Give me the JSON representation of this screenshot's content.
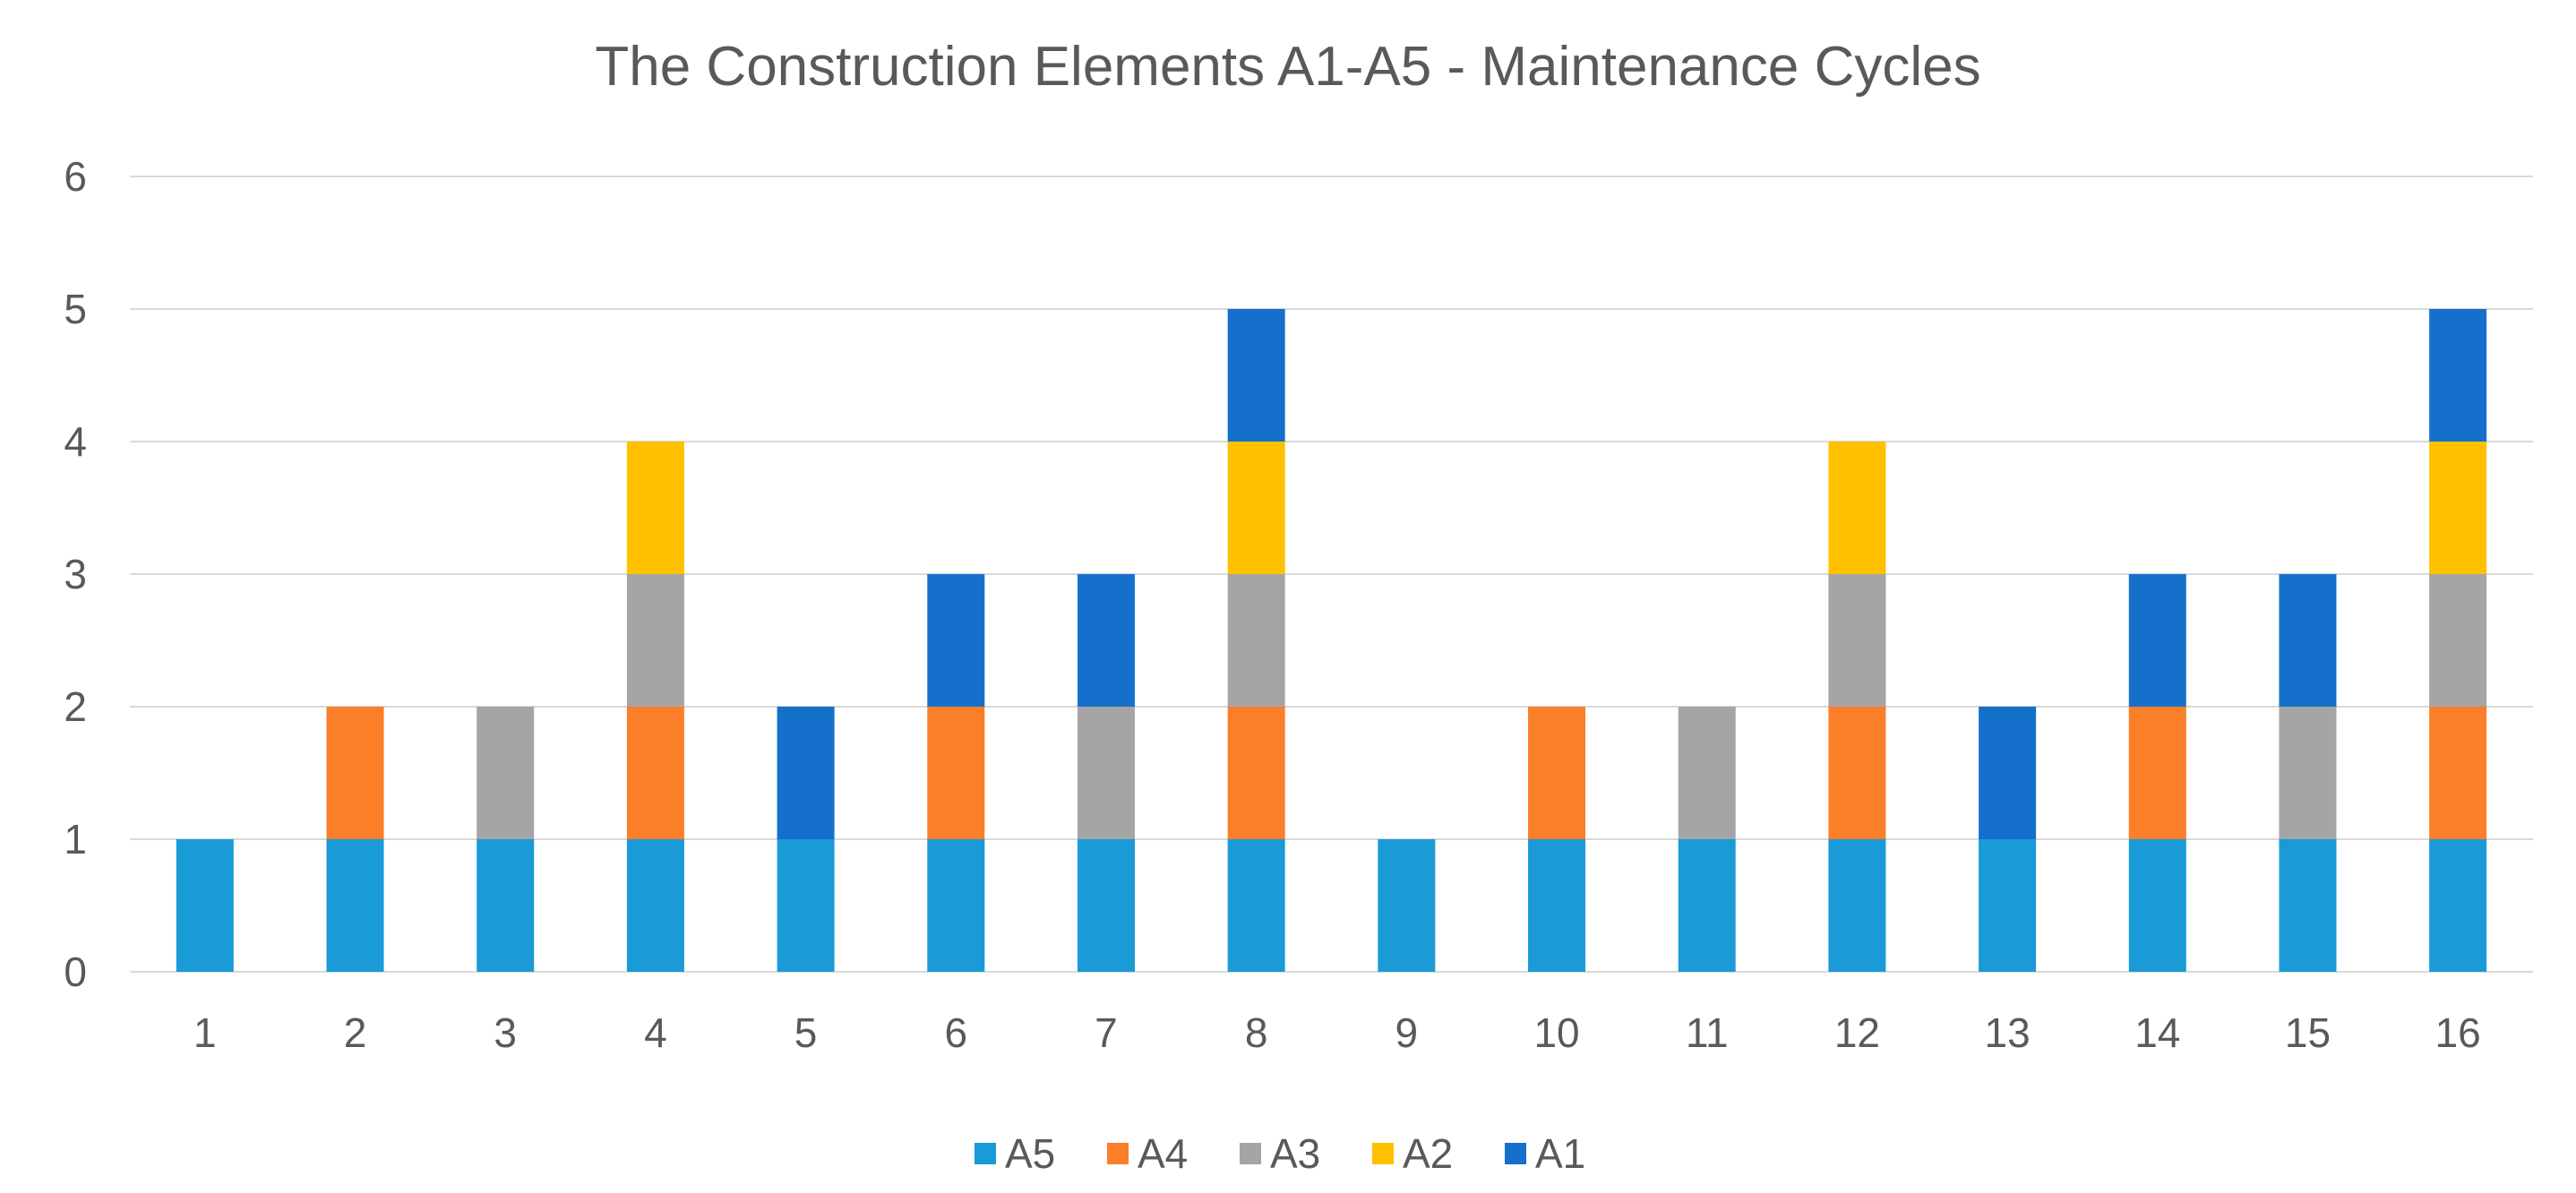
{
  "chart_data": {
    "type": "bar",
    "stacked": true,
    "title": "The  Construction Elements  A1-A5 - Maintenance Cycles",
    "xlabel": "",
    "ylabel": "",
    "categories": [
      "1",
      "2",
      "3",
      "4",
      "5",
      "6",
      "7",
      "8",
      "9",
      "10",
      "11",
      "12",
      "13",
      "14",
      "15",
      "16"
    ],
    "ylim": [
      0,
      6
    ],
    "yticks": [
      "0",
      "1",
      "2",
      "3",
      "4",
      "5",
      "6"
    ],
    "grid": true,
    "legend_position": "bottom",
    "series": [
      {
        "name": "A5",
        "color": "#1a9ad6",
        "values": [
          1,
          1,
          1,
          1,
          1,
          1,
          1,
          1,
          1,
          1,
          1,
          1,
          1,
          1,
          1,
          1
        ]
      },
      {
        "name": "A4",
        "color": "#fb7e29",
        "values": [
          0,
          1,
          0,
          1,
          0,
          1,
          0,
          1,
          0,
          1,
          0,
          1,
          0,
          1,
          0,
          1
        ]
      },
      {
        "name": "A3",
        "color": "#a5a5a5",
        "values": [
          0,
          0,
          1,
          1,
          0,
          0,
          1,
          1,
          0,
          0,
          1,
          1,
          0,
          0,
          1,
          1
        ]
      },
      {
        "name": "A2",
        "color": "#ffc000",
        "values": [
          0,
          0,
          0,
          1,
          0,
          0,
          0,
          1,
          0,
          0,
          0,
          1,
          0,
          0,
          0,
          1
        ]
      },
      {
        "name": "A1",
        "color": "#1570cc",
        "values": [
          0,
          0,
          0,
          0,
          1,
          1,
          1,
          1,
          0,
          0,
          0,
          0,
          1,
          1,
          1,
          1
        ]
      }
    ]
  }
}
